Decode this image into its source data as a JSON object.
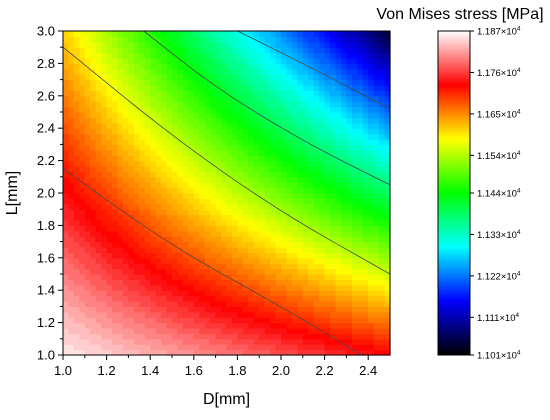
{
  "chart_data": {
    "type": "heatmap",
    "subtype": "filled-contour",
    "title": "",
    "xlabel": "D[mm]",
    "ylabel": "L[mm]",
    "xlim": [
      1.0,
      2.5
    ],
    "ylim": [
      1.0,
      3.0
    ],
    "xticks": [
      "1.0",
      "1.2",
      "1.4",
      "1.6",
      "1.8",
      "2.0",
      "2.2",
      "2.4"
    ],
    "xtick_values": [
      1.0,
      1.2,
      1.4,
      1.6,
      1.8,
      2.0,
      2.2,
      2.4
    ],
    "yticks": [
      "1.0",
      "1.2",
      "1.4",
      "1.6",
      "1.8",
      "2.0",
      "2.2",
      "2.4",
      "2.6",
      "2.8",
      "3.0"
    ],
    "ytick_values": [
      1.0,
      1.2,
      1.4,
      1.6,
      1.8,
      2.0,
      2.2,
      2.4,
      2.6,
      2.8,
      3.0
    ],
    "grid": false,
    "colorbar": {
      "title": "Von Mises stress [MPa]",
      "placement": "right",
      "min": 11010,
      "max": 11870,
      "colors": [
        "#000000",
        "#0000ff",
        "#00ffff",
        "#00ff00",
        "#ffff00",
        "#ff0000",
        "#ffffff"
      ],
      "tick_values": [
        11870,
        11760,
        11650,
        11540,
        11440,
        11330,
        11220,
        11110,
        11010
      ],
      "tick_mantissas": [
        "1.187",
        "1.176",
        "1.165",
        "1.154",
        "1.144",
        "1.133",
        "1.122",
        "1.111",
        "1.101"
      ],
      "tick_suffix": "×10",
      "tick_exponent": "4"
    },
    "corner_values": {
      "D1.0_L1.0": 11860,
      "D2.5_L1.0": 11730,
      "D1.0_L3.0": 11610,
      "D2.5_L3.0": 11040
    },
    "contour_lines": [
      {
        "level": 11750,
        "points": [
          [
            1.0,
            2.15
          ],
          [
            1.5,
            1.67
          ],
          [
            2.0,
            1.3
          ],
          [
            2.37,
            1.0
          ]
        ]
      },
      {
        "level": 11650,
        "points": [
          [
            1.0,
            2.9
          ],
          [
            1.5,
            2.35
          ],
          [
            2.0,
            1.88
          ],
          [
            2.5,
            1.5
          ]
        ]
      },
      {
        "level": 11550,
        "points": [
          [
            1.37,
            3.0
          ],
          [
            1.7,
            2.65
          ],
          [
            2.1,
            2.32
          ],
          [
            2.5,
            2.05
          ]
        ]
      },
      {
        "level": 11450,
        "points": [
          [
            1.8,
            3.0
          ],
          [
            2.1,
            2.8
          ],
          [
            2.5,
            2.52
          ]
        ]
      }
    ]
  }
}
